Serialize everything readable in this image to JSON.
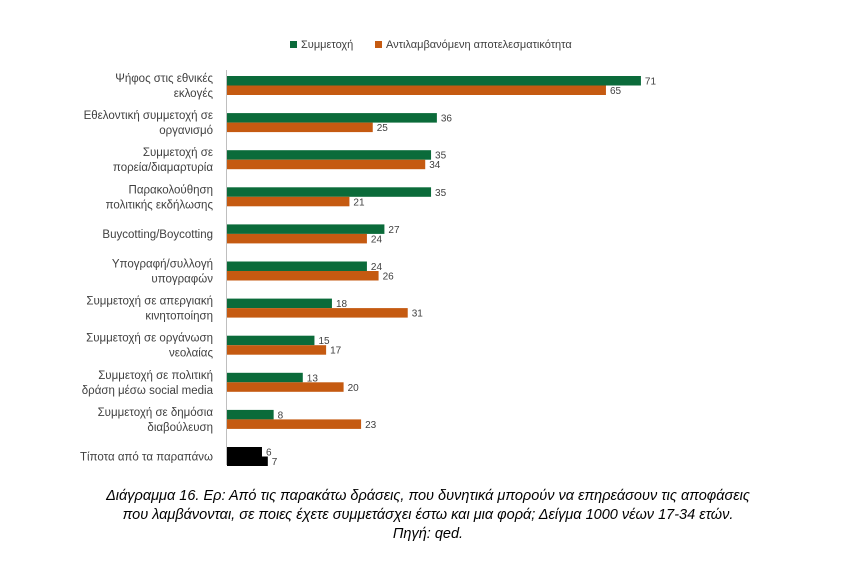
{
  "chart_data": {
    "type": "bar",
    "orientation": "horizontal",
    "categories": [
      [
        "Ψήφος στις εθνικές",
        "εκλογές"
      ],
      [
        "Εθελοντική συμμετοχή σε",
        "οργανισμό"
      ],
      [
        "Συμμετοχή σε",
        "πορεία/διαμαρτυρία"
      ],
      [
        "Παρακολούθηση",
        "πολιτικής εκδήλωσης"
      ],
      [
        "Buycotting/Boycotting"
      ],
      [
        "Υπογραφή/συλλογή",
        "υπογραφών"
      ],
      [
        "Συμμετοχή σε απεργιακή",
        "κινητοποίηση"
      ],
      [
        "Συμμετοχή σε οργάνωση",
        "νεολαίας"
      ],
      [
        "Συμμετοχή σε πολιτική",
        "δράση μέσω social media"
      ],
      [
        "Συμμετοχή σε δημόσια",
        "διαβούλευση"
      ],
      [
        "Τίποτα από τα παραπάνω"
      ]
    ],
    "series": [
      {
        "name": "Συμμετοχή",
        "color": "#0b6b3a",
        "values": [
          71,
          36,
          35,
          35,
          27,
          24,
          18,
          15,
          13,
          8,
          6
        ]
      },
      {
        "name": "Αντιλαμβανόμενη αποτελεσματικότητα",
        "color": "#c55a11",
        "values": [
          65,
          25,
          34,
          21,
          24,
          26,
          31,
          17,
          20,
          23,
          7
        ]
      }
    ],
    "highlight": {
      "category_index": 10,
      "color": "#000000"
    },
    "legend_position": "top",
    "xlim": [
      0,
      80
    ],
    "grid": false
  },
  "caption": {
    "lines": [
      "Διάγραμμα 16. Ερ: Από τις παρακάτω δράσεις, που δυνητικά μπορούν να επηρεάσουν τις αποφάσεις",
      "που λαμβάνονται, σε ποιες έχετε συμμετάσχει έστω και μια φορά; Δείγμα 1000 νέων 17-34 ετών.",
      "Πηγή: qed."
    ]
  }
}
